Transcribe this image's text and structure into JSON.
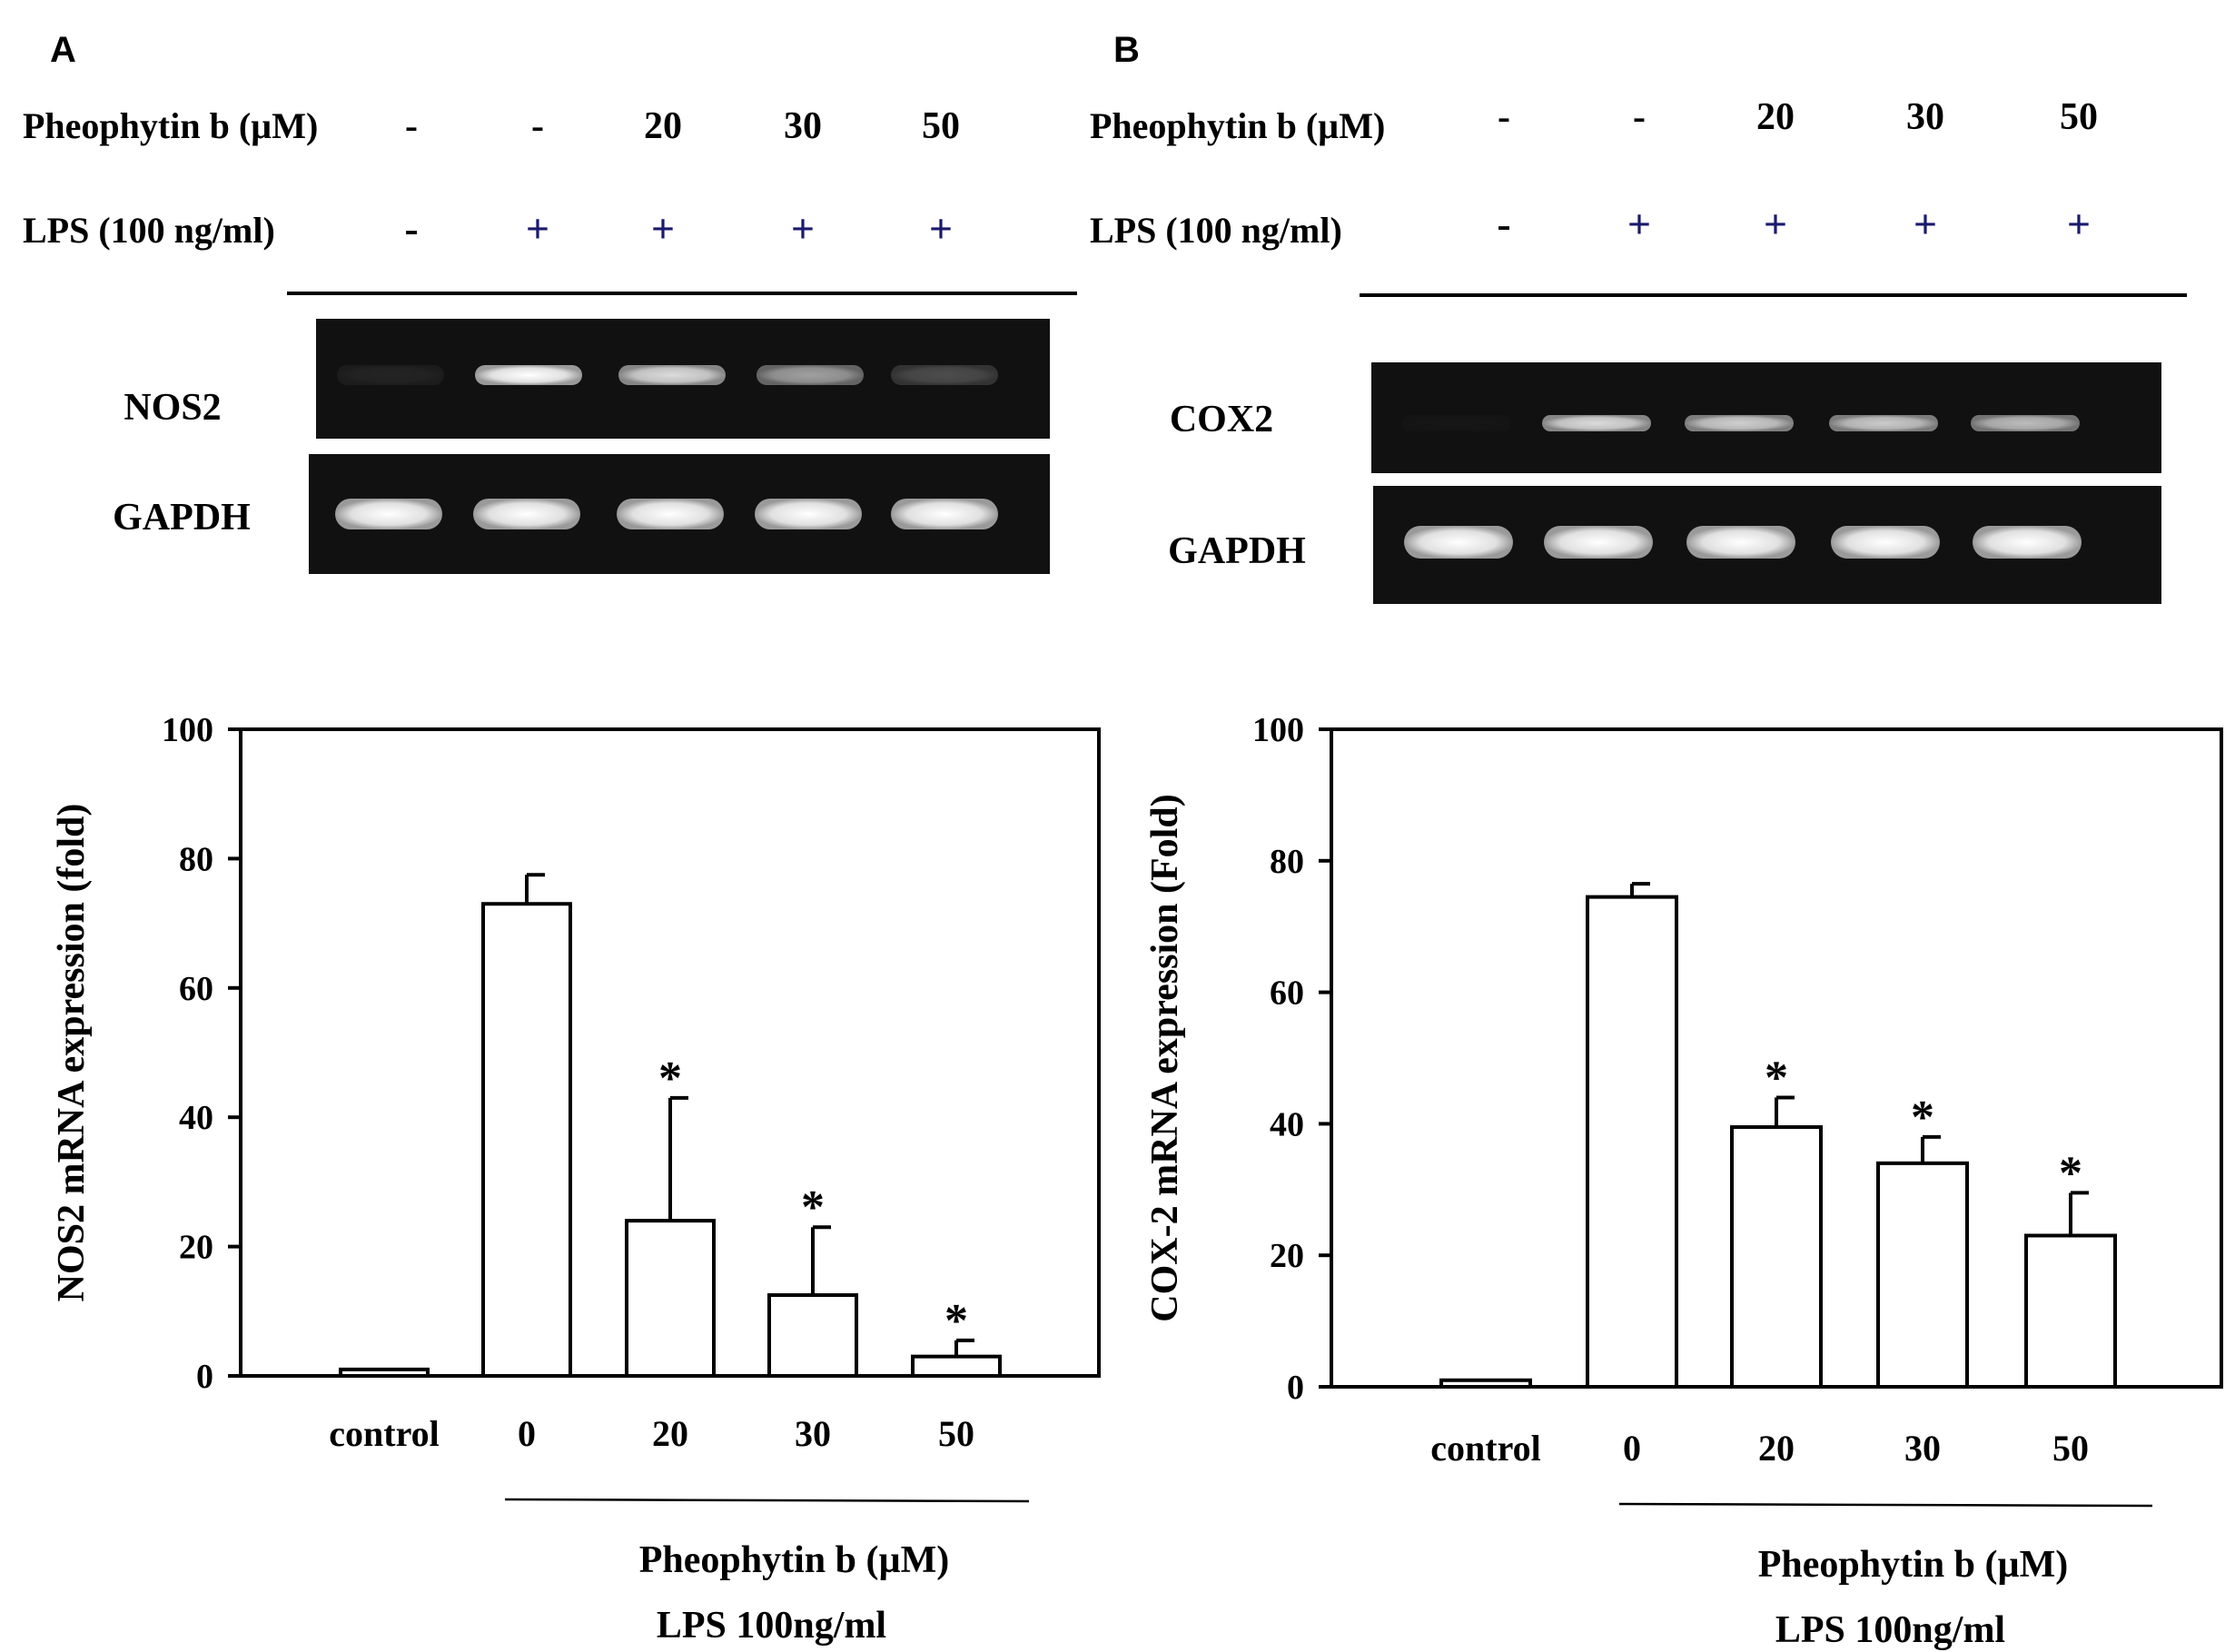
{
  "figure": {
    "panels": [
      {
        "letter": "A",
        "pheophytin_label": "Pheophytin b (µM)",
        "pheophytin_values": [
          "-",
          "-",
          "20",
          "30",
          "50"
        ],
        "lps_label": "LPS (100 ng/ml)",
        "lps_values": [
          "-",
          "+",
          "+",
          "+",
          "+"
        ],
        "gel_labels": [
          "NOS2",
          "GAPDH"
        ]
      },
      {
        "letter": "B",
        "pheophytin_label": "Pheophytin b (µM)",
        "pheophytin_values": [
          "-",
          "-",
          "20",
          "30",
          "50"
        ],
        "lps_label": "LPS (100 ng/ml)",
        "lps_values": [
          "-",
          "+",
          "+",
          "+",
          "+"
        ],
        "gel_labels": [
          "COX2",
          "GAPDH"
        ]
      }
    ],
    "colors": {
      "ink": "#000000",
      "annotation_blue": "#1a1a6e",
      "gel_bg": "#111111",
      "band": "#e6e6e6"
    }
  },
  "chart_data": [
    {
      "type": "bar",
      "categories": [
        "control",
        "0",
        "20",
        "30",
        "50"
      ],
      "values": [
        1,
        73,
        24,
        12.5,
        3
      ],
      "errors": [
        0,
        4.5,
        19,
        10.5,
        2.5
      ],
      "significance": [
        "",
        "",
        "*",
        "*",
        "*"
      ],
      "ylabel": "NOS2 mRNA expression (fold)",
      "xlabel": [
        "Pheophytin b (µM)",
        "LPS 100ng/ml"
      ],
      "ylim": [
        0,
        100
      ],
      "yticks": [
        0,
        20,
        40,
        60,
        80,
        100
      ],
      "bar_color": "#ffffff",
      "band_intensity": {
        "NOS2": [
          0.08,
          1.0,
          0.85,
          0.6,
          0.25
        ],
        "GAPDH": [
          1,
          1,
          1,
          1,
          1
        ]
      }
    },
    {
      "type": "bar",
      "categories": [
        "control",
        "0",
        "20",
        "30",
        "50"
      ],
      "values": [
        1,
        74.5,
        39.5,
        34,
        23
      ],
      "errors": [
        0,
        2,
        4.5,
        4,
        6.5
      ],
      "significance": [
        "",
        "",
        "*",
        "*",
        "*"
      ],
      "ylabel": "COX-2 mRNA expression (Fold)",
      "xlabel": [
        "Pheophytin b (µM)",
        "LPS 100ng/ml"
      ],
      "ylim": [
        0,
        100
      ],
      "yticks": [
        0,
        20,
        40,
        60,
        80,
        100
      ],
      "bar_color": "#ffffff",
      "band_intensity": {
        "COX2": [
          0.02,
          0.85,
          0.8,
          0.78,
          0.72
        ],
        "GAPDH": [
          1,
          1,
          1,
          1,
          1
        ]
      }
    }
  ]
}
